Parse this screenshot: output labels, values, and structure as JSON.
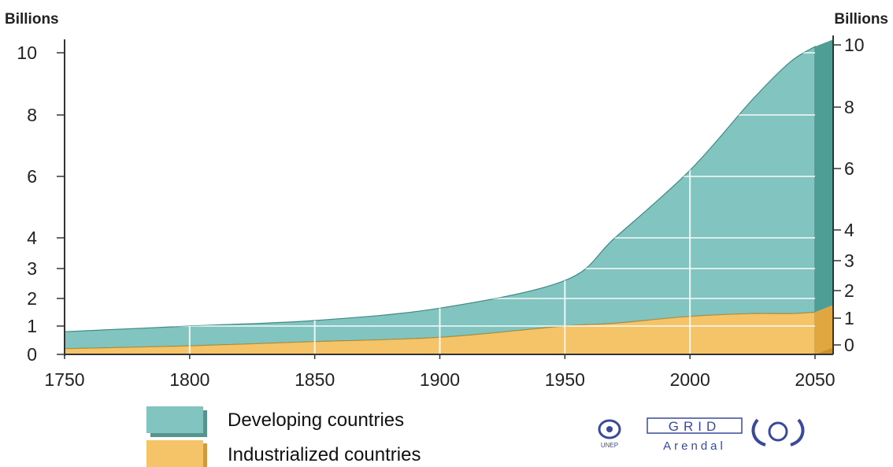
{
  "chart_data": {
    "type": "area",
    "stacked": true,
    "y_unit_left": "Billions",
    "y_unit_right": "Billions",
    "x": [
      1750,
      1800,
      1850,
      1900,
      1950,
      1970,
      2000,
      2025,
      2040,
      2050
    ],
    "series": [
      {
        "name": "Industrialized countries",
        "color": "#f5c469",
        "values": [
          0.2,
          0.3,
          0.45,
          0.6,
          1.0,
          1.1,
          1.35,
          1.45,
          1.45,
          1.5
        ]
      },
      {
        "name": "Developing countries",
        "color": "#82c4c0",
        "values": [
          0.6,
          0.7,
          0.75,
          1.05,
          1.6,
          2.9,
          4.85,
          7.05,
          8.25,
          8.7
        ]
      }
    ],
    "xticks": [
      "1750",
      "1800",
      "1850",
      "1900",
      "1950",
      "2000",
      "2050"
    ],
    "yticks_left": [
      "0",
      "1",
      "2",
      "3",
      "4",
      "6",
      "8",
      "10"
    ],
    "yticks_right": [
      "0",
      "1",
      "2",
      "3",
      "4",
      "6",
      "8",
      "10"
    ],
    "xlim": [
      1750,
      2050
    ],
    "ylim": [
      0,
      10.4
    ],
    "y_scale": "piecewise: 0-4 expanded, 4-10 compressed",
    "grid": "vertical and horizontal white lines inside areas",
    "legend_position": "bottom-center"
  },
  "legend": [
    {
      "label": "Developing countries",
      "color": "#82c4c0"
    },
    {
      "label": "Industrialized countries",
      "color": "#f5c469"
    }
  ],
  "logos": {
    "unep": "UNEP",
    "grid": "GRID",
    "arendal": "Arendal"
  }
}
